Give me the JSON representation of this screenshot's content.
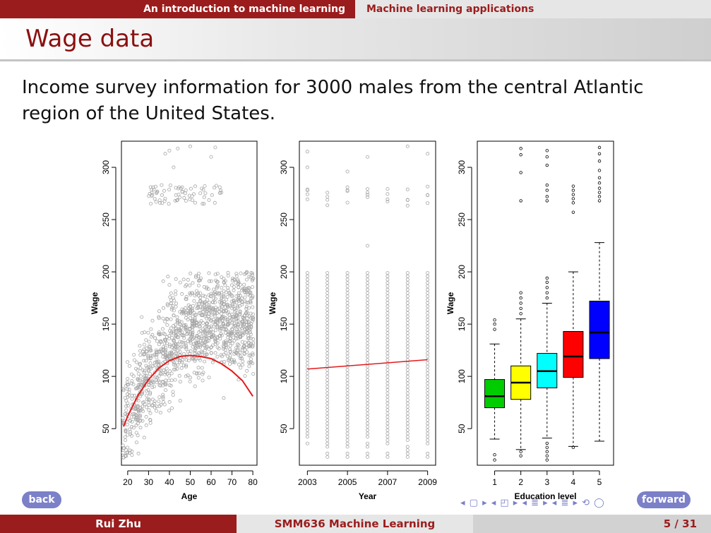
{
  "header": {
    "section_active": "An introduction to machine learning",
    "section_next": "Machine learning applications"
  },
  "slide": {
    "title": "Wage data",
    "intro": "Income survey information for 3000 males from the central Atlantic region of the United States."
  },
  "nav": {
    "back_label": "back",
    "forward_label": "forward",
    "symbols": "◂ ▢ ▸ ◂ ◰ ▸ ◂ ≣ ▸ ◂ ≣ ▸ ⟲ ◯"
  },
  "footer": {
    "author": "Rui Zhu",
    "course": "SMM636 Machine Learning",
    "page": "5 / 31"
  },
  "colors": {
    "brand": "#9b1c1c",
    "button": "#7b80c8",
    "points": "#a6a6a6",
    "fit": "#e31a1c",
    "box_colors": [
      "#00cd00",
      "#ffff00",
      "#00ffff",
      "#ff0000",
      "#0000ff"
    ]
  },
  "chart_data": [
    {
      "type": "scatter",
      "xlabel": "Age",
      "ylabel": "Wage",
      "x_ticks": [
        20,
        30,
        40,
        50,
        60,
        70,
        80
      ],
      "y_ticks": [
        50,
        100,
        150,
        200,
        250,
        300
      ],
      "xlim": [
        17,
        82
      ],
      "ylim": [
        15,
        325
      ],
      "n_points": 3000,
      "point_summary": {
        "age_range": [
          18,
          80
        ],
        "main_band": [
          40,
          200
        ],
        "high_earner_band": [
          255,
          320
        ]
      },
      "fit_curve": {
        "x": [
          18,
          20,
          25,
          30,
          35,
          40,
          45,
          50,
          55,
          60,
          65,
          70,
          75,
          80
        ],
        "y": [
          52,
          62,
          82,
          97,
          108,
          115,
          119,
          120,
          119,
          117,
          112,
          105,
          96,
          81
        ]
      }
    },
    {
      "type": "scatter",
      "xlabel": "Year",
      "ylabel": "Wage",
      "x_ticks": [
        2003,
        2005,
        2007,
        2009
      ],
      "y_ticks": [
        50,
        100,
        150,
        200,
        250,
        300
      ],
      "xlim": [
        2002.6,
        2009.4
      ],
      "ylim": [
        15,
        325
      ],
      "years": [
        2003,
        2004,
        2005,
        2006,
        2007,
        2008,
        2009
      ],
      "point_summary": {
        "main_band": [
          20,
          200
        ],
        "high_earner_band": [
          255,
          320
        ]
      },
      "fit_line": {
        "x": [
          2003,
          2009
        ],
        "y": [
          107,
          116
        ]
      }
    },
    {
      "type": "box",
      "xlabel": "Education level",
      "ylabel": "Wage",
      "categories": [
        "1",
        "2",
        "3",
        "4",
        "5"
      ],
      "y_ticks": [
        50,
        100,
        150,
        200,
        250,
        300
      ],
      "ylim": [
        15,
        325
      ],
      "boxes": [
        {
          "category": "1",
          "lower_whisker": 40,
          "q1": 70,
          "median": 81,
          "q3": 97,
          "upper_whisker": 131,
          "outliers": [
            20,
            25,
            145,
            150,
            154
          ]
        },
        {
          "category": "2",
          "lower_whisker": 30,
          "q1": 78,
          "median": 94,
          "q3": 110,
          "upper_whisker": 155,
          "outliers": [
            24,
            28,
            160,
            165,
            170,
            175,
            180,
            268,
            295,
            312,
            318
          ]
        },
        {
          "category": "3",
          "lower_whisker": 41,
          "q1": 89,
          "median": 105,
          "q3": 122,
          "upper_whisker": 170,
          "outliers": [
            20,
            24,
            28,
            32,
            36,
            175,
            180,
            185,
            190,
            194,
            268,
            272,
            278,
            283,
            302,
            310,
            316
          ]
        },
        {
          "category": "4",
          "lower_whisker": 33,
          "q1": 99,
          "median": 119,
          "q3": 143,
          "upper_whisker": 200,
          "outliers": [
            32,
            257,
            266,
            270,
            274,
            278,
            282
          ]
        },
        {
          "category": "5",
          "lower_whisker": 38,
          "q1": 117,
          "median": 142,
          "q3": 172,
          "upper_whisker": 228,
          "outliers": [
            268,
            272,
            276,
            280,
            285,
            290,
            297,
            306,
            313,
            319
          ]
        }
      ]
    }
  ]
}
